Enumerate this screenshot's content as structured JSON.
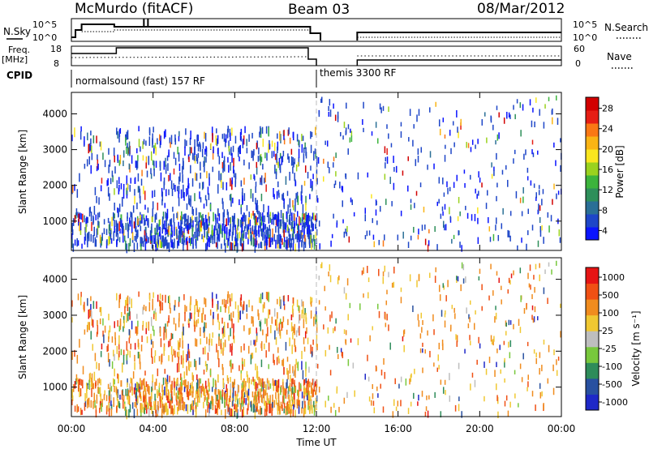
{
  "header": {
    "station": "McMurdo (fitACF)",
    "beam": "Beam 03",
    "date": "08/Mar/2012"
  },
  "strip_labels": {
    "nsky": "N.Sky",
    "nsky_ticks": [
      "10^5",
      "10^0"
    ],
    "nsearch": "N.Search",
    "nsearch_ticks": [
      "10^5",
      "10^0"
    ],
    "freq": "Freq.",
    "freq_unit": "[MHz]",
    "freq_ticks": [
      "18",
      "8"
    ],
    "nave": "Nave",
    "nave_ticks": [
      "60",
      "0"
    ],
    "cpid": "CPID"
  },
  "cpid_segments": [
    {
      "label": "normalsound (fast) 157 RF",
      "start_h": 0,
      "end_h": 12
    },
    {
      "label": "themis 3300 RF",
      "start_h": 12,
      "end_h": 24
    }
  ],
  "time_axis": {
    "label": "Time UT",
    "ticks": [
      "00:00",
      "04:00",
      "08:00",
      "12:00",
      "16:00",
      "20:00",
      "00:00"
    ],
    "range_h": [
      0,
      24
    ]
  },
  "chart_data": [
    {
      "type": "scatter",
      "panel": "power",
      "ylabel": "Slant Range [km]",
      "yticks": [
        "1000",
        "2000",
        "3000",
        "4000"
      ],
      "ylim": [
        180,
        4600
      ],
      "xlim_hours": [
        0,
        24
      ],
      "colorbar": {
        "label": "Power [dB]",
        "ticks": [
          "28",
          "24",
          "20",
          "16",
          "12",
          "8",
          "4"
        ],
        "range": [
          0,
          32
        ],
        "colors": [
          "#0a14ff",
          "#1e46c8",
          "#2a6f96",
          "#2e8f5a",
          "#3cb43c",
          "#9ad21e",
          "#fae61e",
          "#fab414",
          "#fa7814",
          "#e61e14",
          "#d20000"
        ]
      },
      "series": [
        {
          "x_hours": [
            0.8,
            1.3,
            2.4,
            3.6,
            4.7,
            5.9,
            7.1,
            8.4,
            9.6,
            10.8,
            11.7
          ],
          "range_km": [
            600,
            900,
            1100,
            750,
            650,
            800,
            700,
            650,
            600,
            560,
            500
          ],
          "power_db": [
            8,
            10,
            14,
            6,
            8,
            12,
            6,
            8,
            6,
            4,
            6
          ]
        }
      ]
    },
    {
      "type": "scatter",
      "panel": "velocity",
      "ylabel": "Slant Range [km]",
      "yticks": [
        "1000",
        "2000",
        "3000",
        "4000"
      ],
      "ylim": [
        180,
        4600
      ],
      "xlim_hours": [
        0,
        24
      ],
      "colorbar": {
        "label": "Velocity [m s⁻¹]",
        "ticks": [
          "1000",
          "500",
          "100",
          "25",
          "-25",
          "-100",
          "-500",
          "-1000"
        ],
        "colors": [
          "#1e28c8",
          "#2850a0",
          "#2e8c5a",
          "#78c83c",
          "#bebebe",
          "#f0c832",
          "#f08c1e",
          "#f05014",
          "#e61414"
        ]
      },
      "series": [
        {
          "x_hours": [
            0.8,
            1.3,
            2.4,
            3.6,
            4.7,
            5.9,
            7.1,
            8.4,
            9.6,
            10.8,
            11.7
          ],
          "range_km": [
            600,
            900,
            1100,
            750,
            650,
            800,
            700,
            650,
            600,
            560,
            500
          ],
          "velocity_ms": [
            -100,
            100,
            -25,
            -500,
            25,
            -100,
            500,
            -25,
            -100,
            25,
            -500
          ]
        }
      ]
    }
  ]
}
